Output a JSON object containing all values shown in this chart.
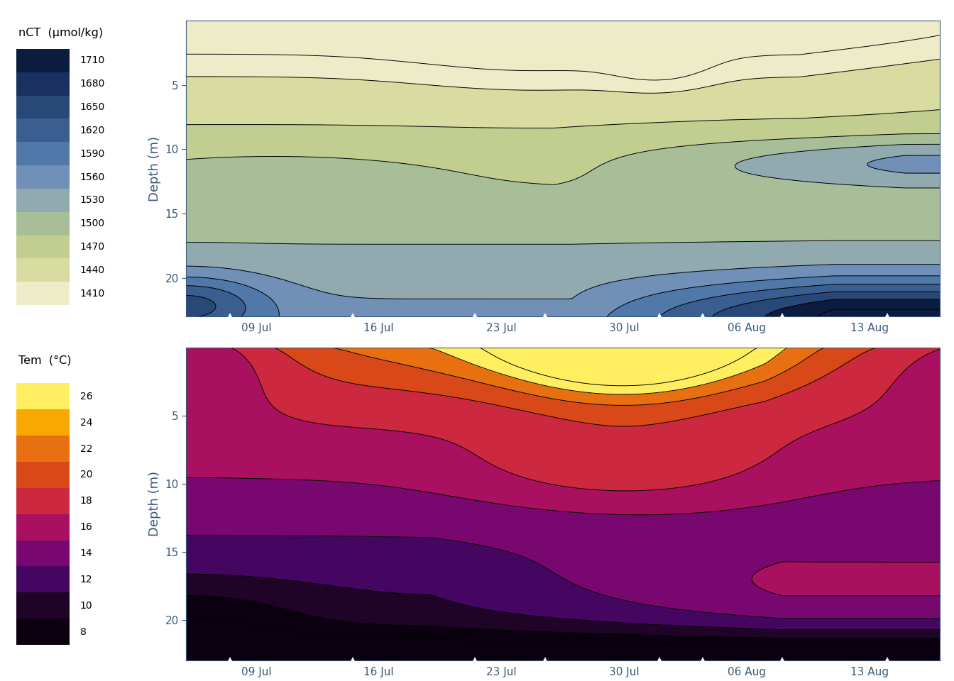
{
  "nct_title": "nCT (μmol/kg)",
  "temp_title": "Tem (°C)",
  "ylabel": "Depth (m)",
  "depth_ticks": [
    5,
    10,
    15,
    20
  ],
  "date_labels": [
    "09 Jul",
    "16 Jul",
    "23 Jul",
    "30 Jul",
    "06 Aug",
    "13 Aug"
  ],
  "date_tick_positions": [
    4,
    11,
    18,
    25,
    32,
    39
  ],
  "nct_levels": [
    1410,
    1440,
    1470,
    1500,
    1530,
    1560,
    1590,
    1620,
    1650,
    1680,
    1710
  ],
  "nct_band_colors": [
    "#eeecc8",
    "#d8dca0",
    "#c2ce90",
    "#a8be98",
    "#90aab0",
    "#7090b8",
    "#5078a8",
    "#3a5e90",
    "#284878",
    "#1a3060",
    "#0c1c3e"
  ],
  "temp_levels": [
    8,
    10,
    12,
    14,
    16,
    18,
    20,
    22,
    24,
    26
  ],
  "temp_band_colors": [
    "#0a0010",
    "#200428",
    "#440660",
    "#780870",
    "#aa1060",
    "#cc2840",
    "#d84818",
    "#e87010",
    "#f8a800",
    "#ffee60"
  ],
  "nct_legend_labels": [
    "1710",
    "1680",
    "1650",
    "1620",
    "1590",
    "1560",
    "1530",
    "1500",
    "1470",
    "1440",
    "1410"
  ],
  "temp_legend_labels": [
    "26",
    "24",
    "22",
    "20",
    "18",
    "16",
    "14",
    "12",
    "10",
    "8"
  ],
  "sample_day_offsets": [
    2.5,
    9.5,
    16.5,
    20.5,
    27,
    29.5,
    34,
    40
  ],
  "t_max": 43,
  "d_max": 23
}
